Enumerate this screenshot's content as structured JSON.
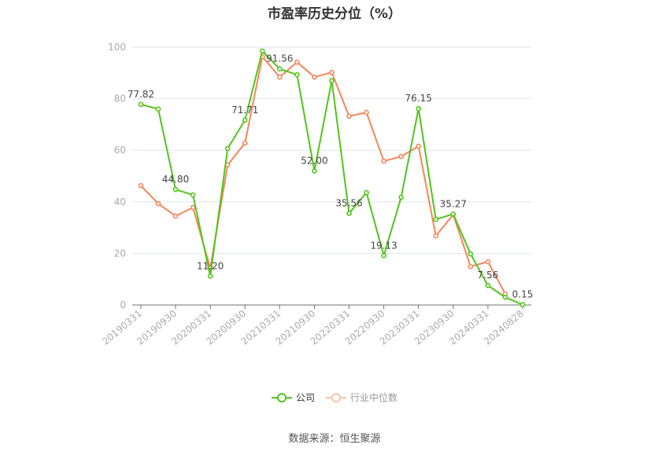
{
  "title": "市盈率历史分位（%）",
  "legend": {
    "company": "公司",
    "industry": "行业中位数"
  },
  "source": "数据来源：恒生聚源",
  "colors": {
    "company": "#52c41a",
    "industry": "#f4875a",
    "grid": "#e0e6f1",
    "axis": "#6e7079",
    "tick_label": "#aaaaaa"
  },
  "chart_data": {
    "type": "line",
    "title": "市盈率历史分位（%）",
    "xlabel": "",
    "ylabel": "",
    "ylim": [
      0,
      100
    ],
    "yticks": [
      0,
      20,
      40,
      60,
      80,
      100
    ],
    "grid": true,
    "legend_position": "bottom",
    "x": [
      "20190331",
      "20190630",
      "20190930",
      "20191231",
      "20200331",
      "20200630",
      "20200930",
      "20201231",
      "20210331",
      "20210630",
      "20210930",
      "20211231",
      "20220331",
      "20220630",
      "20220930",
      "20221231",
      "20230331",
      "20230630",
      "20230930",
      "20231231",
      "20240331",
      "20240630",
      "20240828"
    ],
    "xtick_labels": [
      "20190331",
      "20190930",
      "20200331",
      "20200930",
      "20210331",
      "20210930",
      "20220331",
      "20220930",
      "20230331",
      "20230930",
      "20240331",
      "20240828"
    ],
    "series": [
      {
        "name": "公司",
        "values": [
          77.82,
          76.0,
          44.8,
          42.7,
          11.2,
          60.7,
          71.71,
          98.5,
          91.56,
          89.3,
          52.0,
          87.0,
          35.56,
          43.6,
          19.13,
          41.8,
          76.15,
          33.2,
          35.27,
          19.8,
          7.56,
          3.0,
          0.15
        ],
        "labeled_points": {
          "0": "77.82",
          "2": "44.80",
          "4": "11.20",
          "6": "71.71",
          "8": "91.56",
          "10": "52.00",
          "12": "35.56",
          "14": "19.13",
          "16": "76.15",
          "18": "35.27",
          "20": "7.56",
          "22": "0.15"
        }
      },
      {
        "name": "行业中位数",
        "values": [
          46.3,
          39.3,
          34.5,
          37.8,
          14.3,
          54.3,
          62.8,
          96.3,
          88.4,
          94.2,
          88.4,
          90.2,
          73.2,
          74.7,
          55.8,
          57.6,
          61.6,
          26.8,
          35.1,
          14.9,
          16.8,
          4.3,
          null
        ]
      }
    ]
  }
}
